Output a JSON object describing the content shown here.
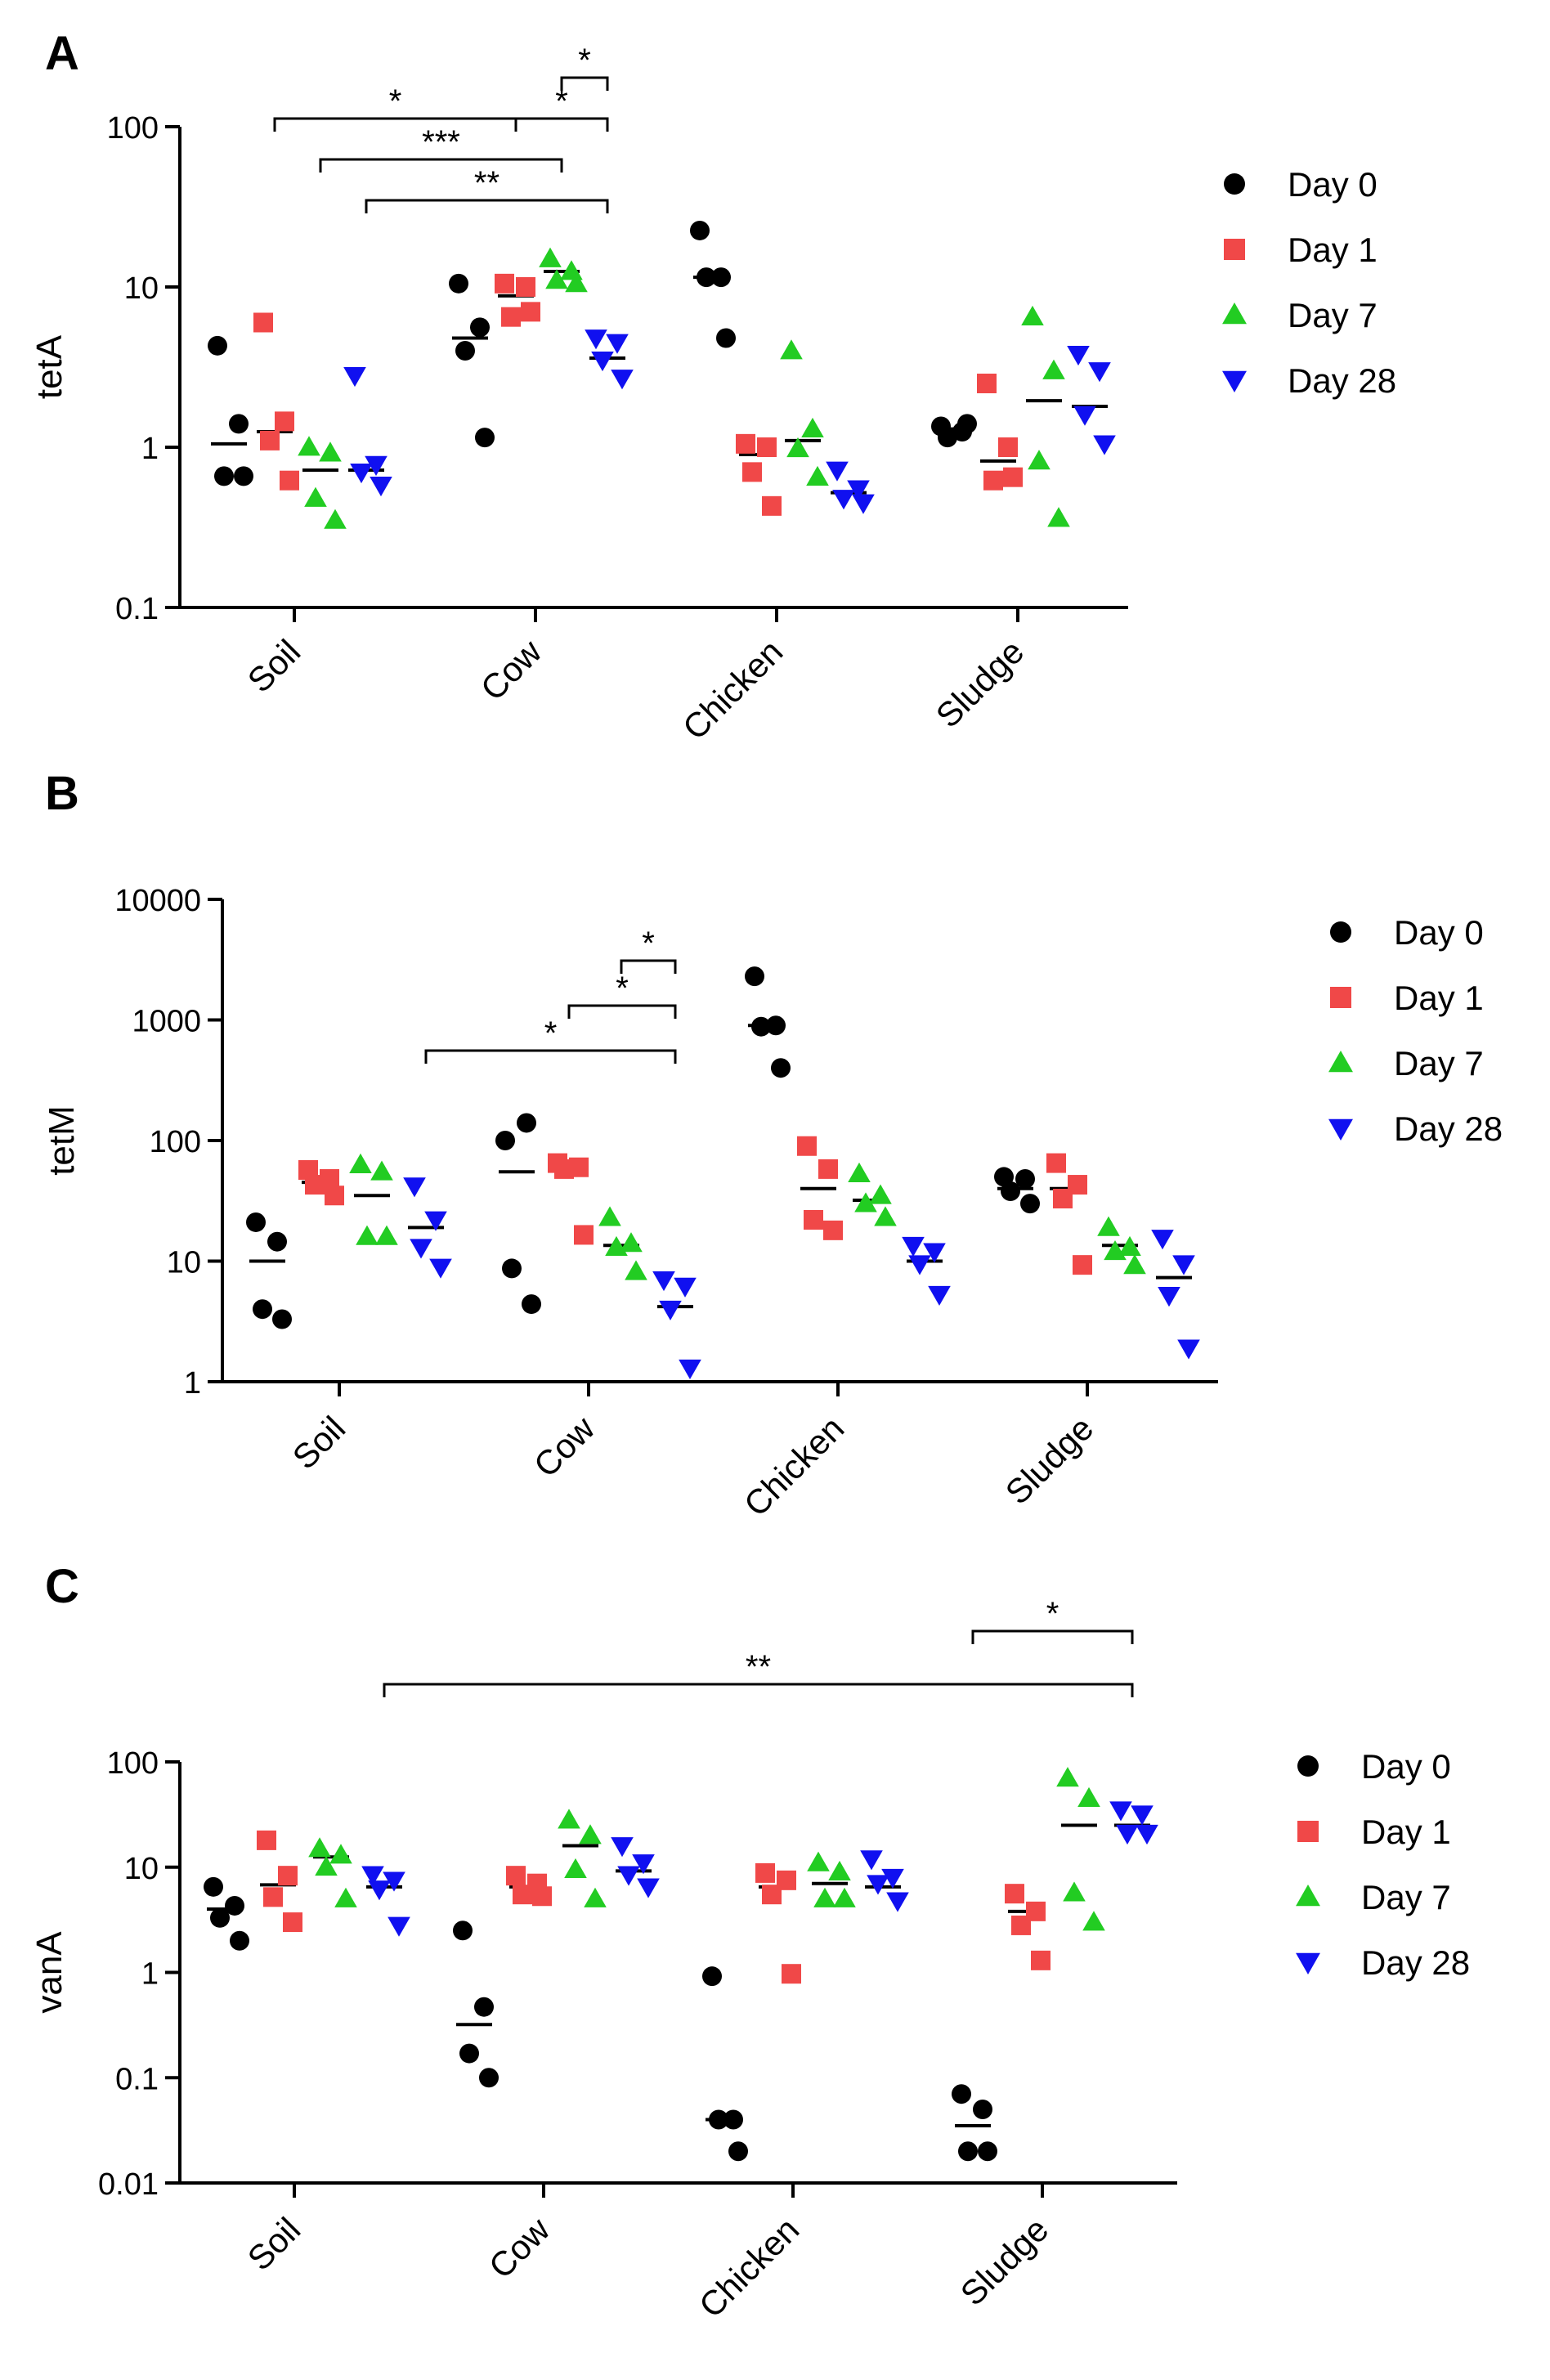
{
  "figure": {
    "background": "#ffffff"
  },
  "legend_entries": [
    {
      "label": "Day 0",
      "marker": "circle-icon",
      "color": "#000000"
    },
    {
      "label": "Day 1",
      "marker": "square-icon",
      "color": "#f04848"
    },
    {
      "label": "Day 7",
      "marker": "triangle-up-icon",
      "color": "#22cc22"
    },
    {
      "label": "Day 28",
      "marker": "triangle-down-icon",
      "color": "#1010f0"
    }
  ],
  "chart_data": [
    {
      "panel": "A",
      "type": "scatter",
      "scale": "log",
      "ylabel": "tetA",
      "ylim": [
        0.1,
        100
      ],
      "yticks": [
        0.1,
        1,
        10,
        100
      ],
      "ytick_labels": [
        "0.1",
        "1",
        "10",
        "100"
      ],
      "categories": [
        "Soil",
        "Cow",
        "Chicken",
        "Sludge"
      ],
      "series": [
        {
          "name": "Day 0",
          "values": [
            [
              4.3,
              1.4,
              0.66,
              0.66
            ],
            [
              10.5,
              5.6,
              4.0,
              1.15
            ],
            [
              22.5,
              11.5,
              11.5,
              4.8
            ],
            [
              1.35,
              1.25,
              1.15,
              1.4
            ]
          ],
          "medians": [
            1.05,
            4.8,
            11.5,
            1.3
          ]
        },
        {
          "name": "Day 1",
          "values": [
            [
              6.0,
              1.45,
              1.1,
              0.62
            ],
            [
              10.5,
              10.0,
              6.5,
              7.0
            ],
            [
              1.05,
              1.0,
              0.7,
              0.43
            ],
            [
              2.5,
              1.0,
              0.62,
              0.65
            ]
          ],
          "medians": [
            1.25,
            8.8,
            0.9,
            0.82
          ]
        },
        {
          "name": "Day 7",
          "values": [
            [
              1.0,
              0.92,
              0.48,
              0.35
            ],
            [
              15.0,
              12.5,
              11.0,
              10.5
            ],
            [
              4.0,
              1.3,
              0.98,
              0.65
            ],
            [
              6.5,
              3.0,
              0.82,
              0.36
            ]
          ],
          "medians": [
            0.72,
            12.5,
            1.1,
            1.95
          ]
        },
        {
          "name": "Day 28",
          "values": [
            [
              2.8,
              0.78,
              0.7,
              0.58
            ],
            [
              4.8,
              4.5,
              3.5,
              2.7
            ],
            [
              0.72,
              0.55,
              0.48,
              0.45
            ],
            [
              3.8,
              3.0,
              1.6,
              1.05
            ]
          ],
          "medians": [
            0.72,
            3.6,
            0.52,
            1.8
          ]
        }
      ],
      "significance": [
        {
          "label": "**",
          "from": [
            0,
            3
          ],
          "to": [
            1,
            3
          ],
          "level": 1
        },
        {
          "label": "***",
          "from": [
            0,
            2
          ],
          "to": [
            1,
            2
          ],
          "level": 2
        },
        {
          "label": "*",
          "from": [
            0,
            1
          ],
          "to": [
            1,
            1
          ],
          "level": 3
        },
        {
          "label": "*",
          "from": [
            1,
            1
          ],
          "to": [
            1,
            3
          ],
          "level": 3
        },
        {
          "label": "*",
          "from": [
            1,
            2
          ],
          "to": [
            1,
            3
          ],
          "level": 4
        }
      ]
    },
    {
      "panel": "B",
      "type": "scatter",
      "scale": "log",
      "ylabel": "tetM",
      "ylim": [
        1,
        10000
      ],
      "yticks": [
        1,
        10,
        100,
        1000,
        10000
      ],
      "ytick_labels": [
        "1",
        "10",
        "100",
        "1000",
        "10000"
      ],
      "categories": [
        "Soil",
        "Cow",
        "Chicken",
        "Sludge"
      ],
      "series": [
        {
          "name": "Day 0",
          "values": [
            [
              21,
              14.5,
              4.0,
              3.3
            ],
            [
              100,
              140,
              8.7,
              4.4
            ],
            [
              2300,
              900,
              880,
              400
            ],
            [
              50,
              48,
              38,
              30
            ]
          ],
          "medians": [
            10,
            55,
            900,
            40
          ]
        },
        {
          "name": "Day 1",
          "values": [
            [
              57,
              48,
              43,
              35
            ],
            [
              65,
              60,
              58,
              16.5
            ],
            [
              90,
              58,
              22,
              18
            ],
            [
              65,
              43,
              33,
              9.3
            ]
          ],
          "medians": [
            45,
            62,
            40,
            40
          ]
        },
        {
          "name": "Day 7",
          "values": [
            [
              63,
              55,
              16,
              16
            ],
            [
              23,
              14,
              13,
              8.2
            ],
            [
              53,
              35,
              30,
              23
            ],
            [
              19,
              13,
              12,
              9.2
            ]
          ],
          "medians": [
            35,
            13.5,
            32,
            13.5
          ]
        },
        {
          "name": "Day 28",
          "values": [
            [
              42,
              22,
              13,
              8.9
            ],
            [
              7.0,
              6.2,
              4.0,
              1.3
            ],
            [
              13.5,
              12,
              9.5,
              5.3
            ],
            [
              15.5,
              9.5,
              5.2,
              1.9
            ]
          ],
          "medians": [
            19,
            4.2,
            10,
            7.3
          ]
        }
      ],
      "significance": [
        {
          "label": "*",
          "from": [
            0,
            3
          ],
          "to": [
            1,
            3
          ],
          "level": 1
        },
        {
          "label": "*",
          "from": [
            1,
            1
          ],
          "to": [
            1,
            3
          ],
          "level": 2
        },
        {
          "label": "*",
          "from": [
            1,
            2
          ],
          "to": [
            1,
            3
          ],
          "level": 3
        }
      ]
    },
    {
      "panel": "C",
      "type": "scatter",
      "scale": "log",
      "ylabel": "vanA",
      "ylim": [
        0.01,
        100
      ],
      "yticks": [
        0.01,
        0.1,
        1,
        10,
        100
      ],
      "ytick_labels": [
        "0.01",
        "0.1",
        "1",
        "10",
        "100"
      ],
      "categories": [
        "Soil",
        "Cow",
        "Chicken",
        "Sludge"
      ],
      "series": [
        {
          "name": "Day 0",
          "values": [
            [
              6.5,
              4.3,
              3.3,
              2.0
            ],
            [
              2.5,
              0.47,
              0.17,
              0.1
            ],
            [
              0.92,
              0.04,
              0.04,
              0.02
            ],
            [
              0.07,
              0.05,
              0.02,
              0.02
            ]
          ],
          "medians": [
            4.0,
            0.32,
            0.04,
            0.035
          ]
        },
        {
          "name": "Day 1",
          "values": [
            [
              18,
              8.3,
              5.2,
              3.0
            ],
            [
              8.3,
              7.0,
              5.5,
              5.3
            ],
            [
              8.8,
              7.5,
              5.5,
              0.97
            ],
            [
              5.6,
              3.8,
              2.8,
              1.3
            ]
          ],
          "medians": [
            6.8,
            6.5,
            6.5,
            3.8
          ]
        },
        {
          "name": "Day 7",
          "values": [
            [
              15,
              13,
              10,
              5.0
            ],
            [
              28,
              20,
              9.5,
              5.0
            ],
            [
              11,
              9.0,
              5.0,
              5.0
            ],
            [
              70,
              45,
              5.7,
              3.0
            ]
          ],
          "medians": [
            12.5,
            16,
            7.0,
            25
          ]
        },
        {
          "name": "Day 28",
          "values": [
            [
              8.5,
              7.5,
              6.2,
              2.8
            ],
            [
              16,
              11,
              8.5,
              6.5
            ],
            [
              12,
              8.0,
              7.0,
              4.8
            ],
            [
              35,
              32,
              21,
              21
            ]
          ],
          "medians": [
            6.5,
            9.2,
            6.5,
            25
          ]
        }
      ],
      "significance": [
        {
          "label": "**",
          "from": [
            0,
            3
          ],
          "to": [
            3,
            3
          ],
          "level": 1
        },
        {
          "label": "*",
          "from": [
            3,
            0
          ],
          "to": [
            3,
            3
          ],
          "level": 2
        }
      ]
    }
  ]
}
